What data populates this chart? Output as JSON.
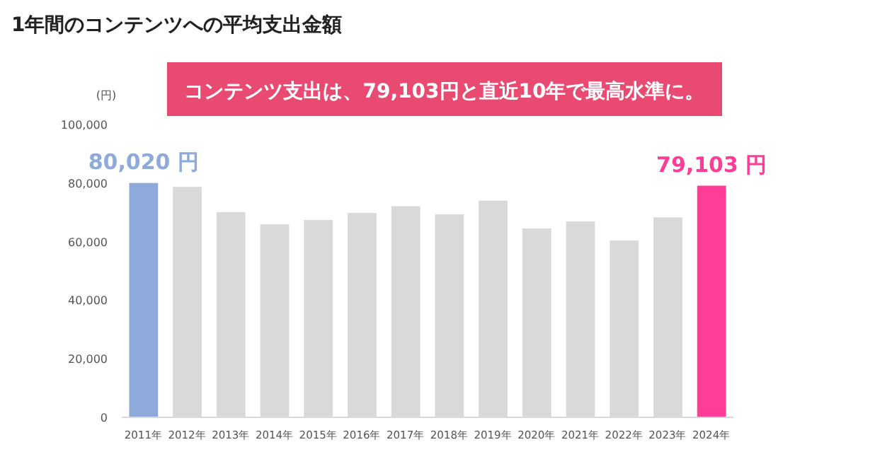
{
  "chart_data": {
    "type": "bar",
    "title": "1年間のコンテンツへの平均支出金額",
    "ylabel": "(円)",
    "annotations": [
      "コンテンツ支出は、79,103円と直近10年で最高水準に。"
    ],
    "categories": [
      "2011年",
      "2012年",
      "2013年",
      "2014年",
      "2015年",
      "2016年",
      "2017年",
      "2018年",
      "2019年",
      "2020年",
      "2021年",
      "2022年",
      "2023年",
      "2024年"
    ],
    "values": [
      80020,
      78700,
      70100,
      65900,
      67400,
      69800,
      72100,
      69300,
      74000,
      64500,
      66900,
      60400,
      68300,
      79103
    ],
    "colors": [
      "#8eaadb",
      "#d9d9d9",
      "#d9d9d9",
      "#d9d9d9",
      "#d9d9d9",
      "#d9d9d9",
      "#d9d9d9",
      "#d9d9d9",
      "#d9d9d9",
      "#d9d9d9",
      "#d9d9d9",
      "#d9d9d9",
      "#d9d9d9",
      "#ff3d96"
    ],
    "value_labels": [
      "80,020 円",
      null,
      null,
      null,
      null,
      null,
      null,
      null,
      null,
      null,
      null,
      null,
      null,
      "79,103 円"
    ],
    "ylim": [
      0,
      100000
    ],
    "yticks": [
      {
        "value": 0,
        "label": "0"
      },
      {
        "value": 20000,
        "label": "20,000"
      },
      {
        "value": 40000,
        "label": "40,000"
      },
      {
        "value": 60000,
        "label": "60,000"
      },
      {
        "value": 80000,
        "label": "80,000"
      },
      {
        "value": 100000,
        "label": "100,000"
      }
    ],
    "grid": false
  }
}
